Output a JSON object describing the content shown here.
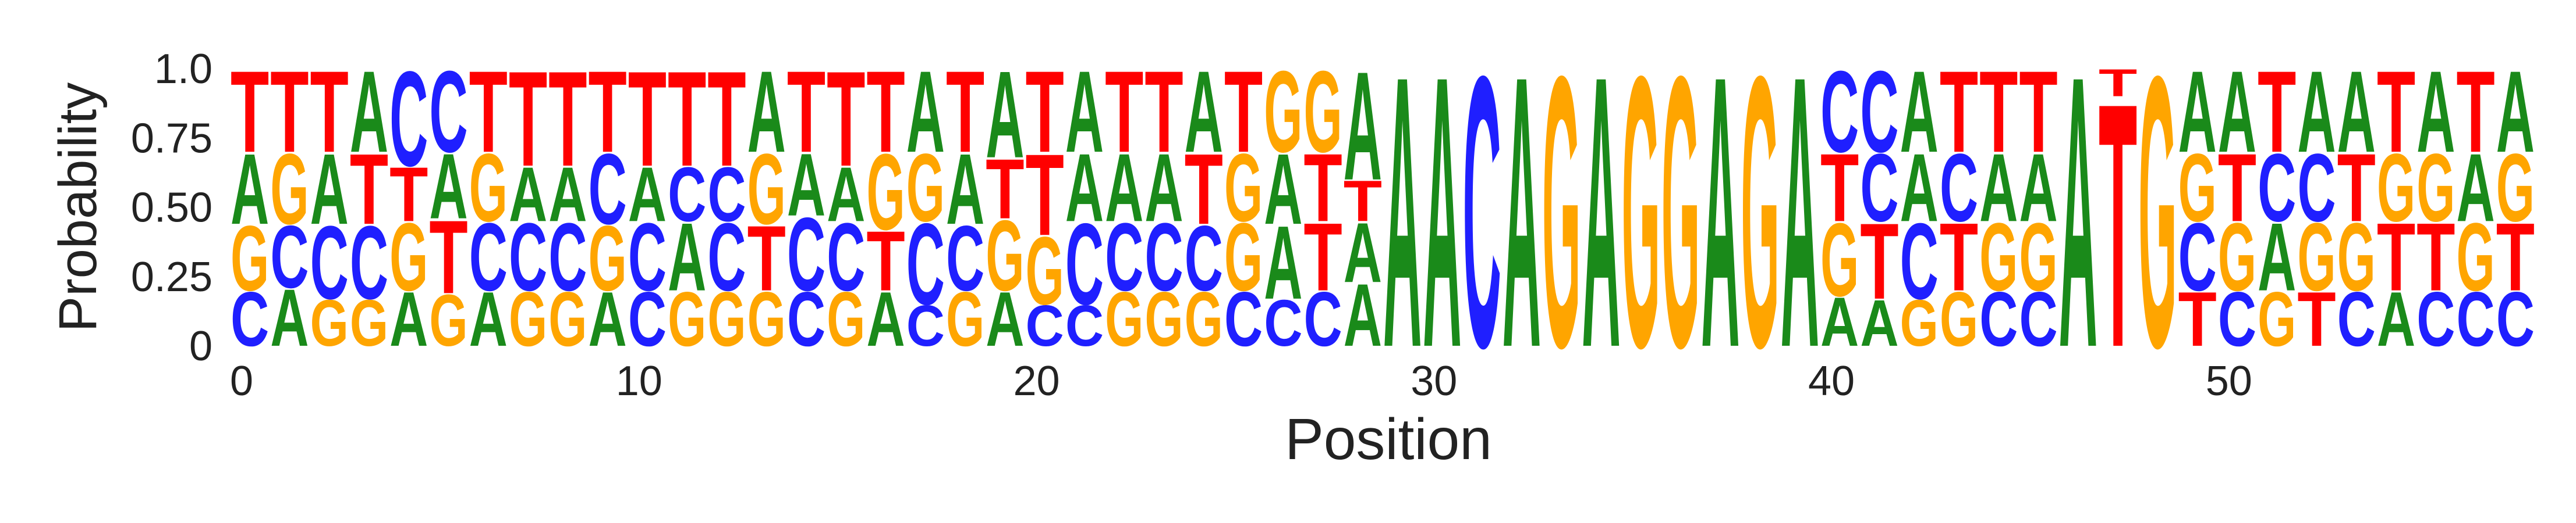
{
  "chart_data": {
    "type": "sequence-logo",
    "xlabel": "Position",
    "ylabel": "Probability",
    "xlim": [
      0,
      58
    ],
    "ylim": [
      0,
      1
    ],
    "x_ticks": [
      "0",
      "10",
      "20",
      "30",
      "40",
      "50"
    ],
    "y_ticks": [
      "0",
      "0.25",
      "0.50",
      "0.75",
      "1.0"
    ],
    "colors": {
      "A": "#1a8a1a",
      "C": "#1f1fff",
      "G": "#ffa500",
      "T": "#ff0000"
    },
    "positions": [
      {
        "C": 0.25,
        "G": 0.25,
        "A": 0.25,
        "T": 0.25
      },
      {
        "A": 0.25,
        "C": 0.25,
        "G": 0.25,
        "T": 0.25
      },
      {
        "G": 0.25,
        "C": 0.25,
        "A": 0.25,
        "T": 0.25
      },
      {
        "G": 0.25,
        "C": 0.25,
        "T": 0.25,
        "A": 0.25
      },
      {
        "A": 0.25,
        "G": 0.25,
        "T": 0.25,
        "C": 0.25
      },
      {
        "G": 0.25,
        "T": 0.25,
        "A": 0.25,
        "C": 0.25
      },
      {
        "A": 0.25,
        "C": 0.25,
        "G": 0.25,
        "T": 0.25
      },
      {
        "G": 0.25,
        "C": 0.25,
        "A": 0.25,
        "T": 0.25
      },
      {
        "G": 0.25,
        "C": 0.25,
        "A": 0.25,
        "T": 0.25
      },
      {
        "A": 0.25,
        "G": 0.25,
        "C": 0.25,
        "T": 0.25
      },
      {
        "C": 0.25,
        "C2": 0,
        "A": 0.25,
        "T": 0.25
      },
      {
        "G": 0.25,
        "A": 0.25,
        "C": 0.25,
        "T": 0.25
      },
      {
        "G": 0.25,
        "T": 0.25,
        "C": 0.25,
        "A": 0.25
      },
      {
        "G": 0.25,
        "C": 0.25,
        "C2": 0,
        "A": 0.25,
        "T": 0.25
      },
      {
        "C": 0.25,
        "G": 0.25,
        "A": 0.25,
        "T": 0.25
      },
      {
        "G": 0.25,
        "A": 0.25,
        "T": 0.25
      }
    ],
    "columns": [
      [
        [
          "C",
          0.2
        ],
        [
          "G",
          0.24
        ],
        [
          "A",
          0.26
        ],
        [
          "T",
          0.3
        ]
      ],
      [
        [
          "A",
          0.21
        ],
        [
          "C",
          0.23
        ],
        [
          "G",
          0.26
        ],
        [
          "T",
          0.3
        ]
      ],
      [
        [
          "G",
          0.17
        ],
        [
          "C",
          0.27
        ],
        [
          "A",
          0.26
        ],
        [
          "T",
          0.3
        ]
      ],
      [
        [
          "G",
          0.17
        ],
        [
          "C",
          0.27
        ],
        [
          "T",
          0.26
        ],
        [
          "A",
          0.3
        ]
      ],
      [
        [
          "A",
          0.2
        ],
        [
          "G",
          0.25
        ],
        [
          "T",
          0.2
        ],
        [
          "C",
          0.35
        ]
      ],
      [
        [
          "G",
          0.19
        ],
        [
          "T",
          0.27
        ],
        [
          "A",
          0.24
        ],
        [
          "C",
          0.3
        ]
      ],
      [
        [
          "A",
          0.2
        ],
        [
          "C",
          0.25
        ],
        [
          "G",
          0.25
        ],
        [
          "T",
          0.3
        ]
      ],
      [
        [
          "G",
          0.2
        ],
        [
          "C",
          0.25
        ],
        [
          "A",
          0.2
        ],
        [
          "T",
          0.35
        ]
      ],
      [
        [
          "G",
          0.2
        ],
        [
          "C",
          0.25
        ],
        [
          "A",
          0.2
        ],
        [
          "T",
          0.35
        ]
      ],
      [
        [
          "A",
          0.2
        ],
        [
          "G",
          0.24
        ],
        [
          "C",
          0.26
        ],
        [
          "T",
          0.3
        ]
      ],
      [
        [
          "C",
          0.2
        ],
        [
          "C",
          0.25
        ],
        [
          "A",
          0.2
        ],
        [
          "T",
          0.35
        ]
      ],
      [
        [
          "G",
          0.2
        ],
        [
          "A",
          0.25
        ],
        [
          "C",
          0.2
        ],
        [
          "T",
          0.35
        ]
      ],
      [
        [
          "G",
          0.2
        ],
        [
          "C",
          0.25
        ],
        [
          "C",
          0.2
        ],
        [
          "T",
          0.35
        ]
      ],
      [
        [
          "G",
          0.2
        ],
        [
          "T",
          0.24
        ],
        [
          "G",
          0.26
        ],
        [
          "A",
          0.3
        ]
      ],
      [
        [
          "C",
          0.2
        ],
        [
          "C",
          0.27
        ],
        [
          "A",
          0.23
        ],
        [
          "T",
          0.3
        ]
      ],
      [
        [
          "G",
          0.2
        ],
        [
          "C",
          0.25
        ],
        [
          "A",
          0.2
        ],
        [
          "T",
          0.35
        ]
      ],
      [
        [
          "A",
          0.2
        ],
        [
          "T",
          0.22
        ],
        [
          "G",
          0.28
        ],
        [
          "T",
          0.3
        ]
      ],
      [
        [
          "C",
          0.15
        ],
        [
          "C",
          0.3
        ],
        [
          "G",
          0.25
        ],
        [
          "A",
          0.3
        ]
      ],
      [
        [
          "G",
          0.2
        ],
        [
          "C",
          0.24
        ],
        [
          "A",
          0.26
        ],
        [
          "T",
          0.3
        ]
      ],
      [
        [
          "A",
          0.2
        ],
        [
          "G",
          0.26
        ],
        [
          "T",
          0.22
        ],
        [
          "A",
          0.32
        ]
      ],
      [
        [
          "C",
          0.15
        ],
        [
          "G",
          0.25
        ],
        [
          "T",
          0.3
        ],
        [
          "T",
          0.3
        ]
      ],
      [
        [
          "C",
          0.15
        ],
        [
          "C",
          0.3
        ],
        [
          "A",
          0.25
        ],
        [
          "A",
          0.3
        ]
      ],
      [
        [
          "G",
          0.2
        ],
        [
          "C",
          0.25
        ],
        [
          "A",
          0.25
        ],
        [
          "T",
          0.3
        ]
      ],
      [
        [
          "G",
          0.2
        ],
        [
          "C",
          0.25
        ],
        [
          "A",
          0.25
        ],
        [
          "T",
          0.3
        ]
      ],
      [
        [
          "G",
          0.2
        ],
        [
          "C",
          0.24
        ],
        [
          "T",
          0.26
        ],
        [
          "A",
          0.3
        ]
      ],
      [
        [
          "C",
          0.2
        ],
        [
          "G",
          0.25
        ],
        [
          "G",
          0.25
        ],
        [
          "T",
          0.3
        ]
      ],
      [
        [
          "C",
          0.17
        ],
        [
          "A",
          0.27
        ],
        [
          "A",
          0.26
        ],
        [
          "G",
          0.3
        ]
      ],
      [
        [
          "C",
          0.2
        ],
        [
          "T",
          0.25
        ],
        [
          "T",
          0.25
        ],
        [
          "G",
          0.3
        ]
      ],
      [
        [
          "A",
          0.23
        ],
        [
          "A",
          0.22
        ],
        [
          "T",
          0.15
        ],
        [
          "A",
          0.4
        ]
      ],
      [
        [
          "A",
          1.0
        ]
      ],
      [
        [
          "A",
          1.0
        ]
      ],
      [
        [
          "C",
          1.0
        ]
      ],
      [
        [
          "A",
          1.0
        ]
      ],
      [
        [
          "G",
          1.0
        ]
      ],
      [
        [
          "A",
          1.0
        ]
      ],
      [
        [
          "G",
          1.0
        ]
      ],
      [
        [
          "G",
          1.0
        ]
      ],
      [
        [
          "A",
          1.0
        ]
      ],
      [
        [
          "G",
          1.0
        ]
      ],
      [
        [
          "A",
          1.0
        ]
      ],
      [
        [
          "A",
          0.18
        ],
        [
          "G",
          0.27
        ],
        [
          "T",
          0.25
        ],
        [
          "C",
          0.3
        ]
      ],
      [
        [
          "A",
          0.17
        ],
        [
          "T",
          0.28
        ],
        [
          "C",
          0.25
        ],
        [
          "C",
          0.3
        ]
      ],
      [
        [
          "G",
          0.17
        ],
        [
          "C",
          0.28
        ],
        [
          "A",
          0.25
        ],
        [
          "A",
          0.3
        ]
      ],
      [
        [
          "G",
          0.2
        ],
        [
          "T",
          0.25
        ],
        [
          "C",
          0.25
        ],
        [
          "T",
          0.3
        ]
      ],
      [
        [
          "C",
          0.2
        ],
        [
          "G",
          0.25
        ],
        [
          "A",
          0.25
        ],
        [
          "T",
          0.3
        ]
      ],
      [
        [
          "C",
          0.2
        ],
        [
          "G",
          0.25
        ],
        [
          "A",
          0.25
        ],
        [
          "T",
          0.3
        ]
      ],
      [
        [
          "A",
          1.0
        ]
      ],
      [
        [
          "T",
          0.9
        ],
        [
          "T",
          0.1
        ]
      ],
      [
        [
          "G",
          1.0
        ]
      ],
      [
        [
          "T",
          0.2
        ],
        [
          "C",
          0.25
        ],
        [
          "G",
          0.25
        ],
        [
          "A",
          0.3
        ]
      ],
      [
        [
          "C",
          0.2
        ],
        [
          "G",
          0.25
        ],
        [
          "T",
          0.25
        ],
        [
          "A",
          0.3
        ]
      ],
      [
        [
          "G",
          0.2
        ],
        [
          "A",
          0.25
        ],
        [
          "C",
          0.25
        ],
        [
          "T",
          0.3
        ]
      ],
      [
        [
          "T",
          0.2
        ],
        [
          "G",
          0.25
        ],
        [
          "C",
          0.25
        ],
        [
          "A",
          0.3
        ]
      ],
      [
        [
          "C",
          0.2
        ],
        [
          "G",
          0.25
        ],
        [
          "T",
          0.25
        ],
        [
          "A",
          0.3
        ]
      ],
      [
        [
          "A",
          0.2
        ],
        [
          "T",
          0.25
        ],
        [
          "G",
          0.25
        ],
        [
          "T",
          0.3
        ]
      ],
      [
        [
          "C",
          0.2
        ],
        [
          "T",
          0.25
        ],
        [
          "G",
          0.25
        ],
        [
          "A",
          0.3
        ]
      ],
      [
        [
          "C",
          0.2
        ],
        [
          "G",
          0.25
        ],
        [
          "A",
          0.25
        ],
        [
          "T",
          0.3
        ]
      ],
      [
        [
          "C",
          0.2
        ],
        [
          "T",
          0.25
        ],
        [
          "G",
          0.25
        ],
        [
          "A",
          0.3
        ]
      ]
    ]
  }
}
